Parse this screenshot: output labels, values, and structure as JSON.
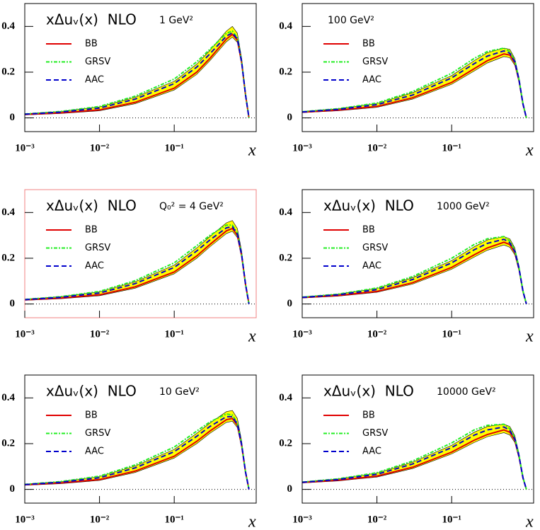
{
  "chart_data": [
    {
      "type": "line",
      "title": "xΔuᵥ(x)  NLO",
      "scale_label": "1 GeV²",
      "x_label": "x",
      "frame_color": "#000000",
      "zero_line": true,
      "xscale": "log",
      "xlim": [
        0.001,
        1.25
      ],
      "ylim": [
        -0.06,
        0.5
      ],
      "xticks": [
        {
          "value": 0.001,
          "label": "10⁻³"
        },
        {
          "value": 0.01,
          "label": "10⁻²"
        },
        {
          "value": 0.1,
          "label": "10⁻¹"
        }
      ],
      "yticks": [
        0,
        0.2,
        0.4
      ],
      "x": [
        0.001,
        0.003,
        0.01,
        0.03,
        0.1,
        0.2,
        0.3,
        0.5,
        0.6,
        0.7,
        0.8,
        0.9,
        1
      ],
      "band": {
        "color": "#ffff00",
        "upper": [
          0.018,
          0.028,
          0.048,
          0.09,
          0.16,
          0.235,
          0.295,
          0.38,
          0.4,
          0.37,
          0.26,
          0.11,
          0
        ],
        "lower": [
          0.013,
          0.019,
          0.031,
          0.062,
          0.122,
          0.19,
          0.25,
          0.333,
          0.353,
          0.33,
          0.232,
          0.095,
          0
        ]
      },
      "series": [
        {
          "name": "BB",
          "color": "#e00000",
          "style": "solid",
          "values": [
            0.015,
            0.022,
            0.035,
            0.068,
            0.13,
            0.2,
            0.26,
            0.345,
            0.365,
            0.34,
            0.24,
            0.1,
            0
          ]
        },
        {
          "name": "GRSV",
          "color": "#22ee22",
          "style": "dashdot",
          "values": [
            0.017,
            0.028,
            0.05,
            0.095,
            0.17,
            0.245,
            0.3,
            0.37,
            0.38,
            0.35,
            0.245,
            0.102,
            0
          ]
        },
        {
          "name": "AAC",
          "color": "#0000cc",
          "style": "dashed",
          "values": [
            0.016,
            0.025,
            0.043,
            0.082,
            0.15,
            0.222,
            0.28,
            0.358,
            0.372,
            0.345,
            0.242,
            0.101,
            0
          ]
        }
      ]
    },
    {
      "type": "line",
      "scale_label": "100 GeV²",
      "x_label": "x",
      "frame_color": "#000000",
      "zero_line": true,
      "xscale": "log",
      "xlim": [
        0.001,
        1.25
      ],
      "ylim": [
        -0.06,
        0.5
      ],
      "xticks": [
        {
          "value": 0.001,
          "label": "10⁻³"
        },
        {
          "value": 0.01,
          "label": "10⁻²"
        },
        {
          "value": 0.1,
          "label": "10⁻¹"
        }
      ],
      "yticks": [
        0,
        0.2,
        0.4
      ],
      "x": [
        0.001,
        0.003,
        0.01,
        0.03,
        0.1,
        0.2,
        0.3,
        0.5,
        0.6,
        0.7,
        0.8,
        0.9,
        1
      ],
      "band": {
        "color": "#ffff00",
        "upper": [
          0.028,
          0.04,
          0.063,
          0.11,
          0.185,
          0.25,
          0.285,
          0.305,
          0.3,
          0.26,
          0.175,
          0.065,
          0
        ],
        "lower": [
          0.023,
          0.031,
          0.046,
          0.082,
          0.147,
          0.205,
          0.24,
          0.268,
          0.263,
          0.23,
          0.152,
          0.055,
          0
        ]
      },
      "series": [
        {
          "name": "BB",
          "color": "#e00000",
          "style": "solid",
          "values": [
            0.025,
            0.034,
            0.05,
            0.088,
            0.155,
            0.215,
            0.25,
            0.28,
            0.275,
            0.24,
            0.16,
            0.06,
            0
          ]
        },
        {
          "name": "GRSV",
          "color": "#22ee22",
          "style": "dashdot",
          "values": [
            0.027,
            0.04,
            0.065,
            0.115,
            0.195,
            0.26,
            0.29,
            0.305,
            0.29,
            0.25,
            0.165,
            0.062,
            0
          ]
        },
        {
          "name": "AAC",
          "color": "#0000cc",
          "style": "dashed",
          "values": [
            0.026,
            0.037,
            0.058,
            0.1,
            0.175,
            0.237,
            0.27,
            0.293,
            0.283,
            0.245,
            0.163,
            0.061,
            0
          ]
        }
      ]
    },
    {
      "type": "line",
      "title": "xΔuᵥ(x)  NLO",
      "scale_label": "Q₀² = 4 GeV²",
      "x_label": "x",
      "frame_color": "#f08080",
      "zero_line": true,
      "xscale": "log",
      "xlim": [
        0.001,
        1.25
      ],
      "ylim": [
        -0.06,
        0.5
      ],
      "xticks": [
        {
          "value": 0.001,
          "label": "10⁻³"
        },
        {
          "value": 0.01,
          "label": "10⁻²"
        },
        {
          "value": 0.1,
          "label": "10⁻¹"
        }
      ],
      "yticks": [
        0,
        0.2,
        0.4
      ],
      "x": [
        0.001,
        0.003,
        0.01,
        0.03,
        0.1,
        0.2,
        0.3,
        0.5,
        0.6,
        0.7,
        0.8,
        0.9,
        1
      ],
      "band": {
        "color": "#ffff00",
        "upper": [
          0.021,
          0.032,
          0.053,
          0.097,
          0.17,
          0.245,
          0.295,
          0.355,
          0.365,
          0.33,
          0.23,
          0.095,
          0
        ],
        "lower": [
          0.016,
          0.023,
          0.036,
          0.069,
          0.132,
          0.2,
          0.25,
          0.308,
          0.318,
          0.29,
          0.202,
          0.08,
          0
        ]
      },
      "series": [
        {
          "name": "BB",
          "color": "#e00000",
          "style": "solid",
          "values": [
            0.018,
            0.026,
            0.04,
            0.075,
            0.14,
            0.21,
            0.26,
            0.32,
            0.33,
            0.3,
            0.21,
            0.085,
            0
          ]
        },
        {
          "name": "GRSV",
          "color": "#22ee22",
          "style": "dashdot",
          "values": [
            0.02,
            0.032,
            0.055,
            0.102,
            0.18,
            0.255,
            0.3,
            0.345,
            0.345,
            0.31,
            0.215,
            0.087,
            0
          ]
        },
        {
          "name": "AAC",
          "color": "#0000cc",
          "style": "dashed",
          "values": [
            0.019,
            0.029,
            0.048,
            0.089,
            0.16,
            0.232,
            0.28,
            0.333,
            0.338,
            0.305,
            0.213,
            0.086,
            0
          ]
        }
      ]
    },
    {
      "type": "line",
      "title": "xΔuᵥ(x)  NLO",
      "scale_label": "1000 GeV²",
      "x_label": "x",
      "frame_color": "#000000",
      "zero_line": true,
      "xscale": "log",
      "xlim": [
        0.001,
        1.25
      ],
      "ylim": [
        -0.06,
        0.5
      ],
      "xticks": [
        {
          "value": 0.001,
          "label": "10⁻³"
        },
        {
          "value": 0.01,
          "label": "10⁻²"
        },
        {
          "value": 0.1,
          "label": "10⁻¹"
        }
      ],
      "yticks": [
        0,
        0.2,
        0.4
      ],
      "x": [
        0.001,
        0.003,
        0.01,
        0.03,
        0.1,
        0.2,
        0.3,
        0.5,
        0.6,
        0.7,
        0.8,
        0.9,
        1
      ],
      "band": {
        "color": "#ffff00",
        "upper": [
          0.031,
          0.043,
          0.068,
          0.115,
          0.19,
          0.25,
          0.28,
          0.295,
          0.285,
          0.245,
          0.165,
          0.06,
          0
        ],
        "lower": [
          0.026,
          0.034,
          0.051,
          0.087,
          0.152,
          0.205,
          0.235,
          0.258,
          0.248,
          0.215,
          0.142,
          0.05,
          0
        ]
      },
      "series": [
        {
          "name": "BB",
          "color": "#e00000",
          "style": "solid",
          "values": [
            0.028,
            0.037,
            0.055,
            0.093,
            0.16,
            0.215,
            0.245,
            0.27,
            0.26,
            0.225,
            0.15,
            0.055,
            0
          ]
        },
        {
          "name": "GRSV",
          "color": "#22ee22",
          "style": "dashdot",
          "values": [
            0.03,
            0.043,
            0.07,
            0.12,
            0.2,
            0.26,
            0.285,
            0.295,
            0.275,
            0.235,
            0.155,
            0.057,
            0
          ]
        },
        {
          "name": "AAC",
          "color": "#0000cc",
          "style": "dashed",
          "values": [
            0.029,
            0.04,
            0.063,
            0.107,
            0.18,
            0.237,
            0.265,
            0.283,
            0.268,
            0.23,
            0.153,
            0.056,
            0
          ]
        }
      ]
    },
    {
      "type": "line",
      "title": "xΔuᵥ(x)  NLO",
      "scale_label": "10 GeV²",
      "x_label": "x",
      "frame_color": "#000000",
      "zero_line": true,
      "xscale": "log",
      "xlim": [
        0.001,
        1.25
      ],
      "ylim": [
        -0.06,
        0.5
      ],
      "xticks": [
        {
          "value": 0.001,
          "label": "10⁻³"
        },
        {
          "value": 0.01,
          "label": "10⁻²"
        },
        {
          "value": 0.1,
          "label": "10⁻¹"
        }
      ],
      "yticks": [
        0,
        0.2,
        0.4
      ],
      "x": [
        0.001,
        0.003,
        0.01,
        0.03,
        0.1,
        0.2,
        0.3,
        0.5,
        0.6,
        0.7,
        0.8,
        0.9,
        1
      ],
      "band": {
        "color": "#ffff00",
        "upper": [
          0.023,
          0.034,
          0.056,
          0.102,
          0.175,
          0.245,
          0.29,
          0.34,
          0.345,
          0.31,
          0.21,
          0.085,
          0
        ],
        "lower": [
          0.018,
          0.025,
          0.039,
          0.074,
          0.137,
          0.2,
          0.245,
          0.293,
          0.298,
          0.27,
          0.182,
          0.07,
          0
        ]
      },
      "series": [
        {
          "name": "BB",
          "color": "#e00000",
          "style": "solid",
          "values": [
            0.02,
            0.028,
            0.043,
            0.08,
            0.145,
            0.21,
            0.255,
            0.305,
            0.31,
            0.28,
            0.19,
            0.075,
            0
          ]
        },
        {
          "name": "GRSV",
          "color": "#22ee22",
          "style": "dashdot",
          "values": [
            0.022,
            0.034,
            0.058,
            0.107,
            0.185,
            0.255,
            0.295,
            0.33,
            0.325,
            0.29,
            0.195,
            0.077,
            0
          ]
        },
        {
          "name": "AAC",
          "color": "#0000cc",
          "style": "dashed",
          "values": [
            0.021,
            0.031,
            0.051,
            0.094,
            0.165,
            0.232,
            0.275,
            0.318,
            0.318,
            0.285,
            0.193,
            0.076,
            0
          ]
        }
      ]
    },
    {
      "type": "line",
      "title": "xΔuᵥ(x)  NLO",
      "scale_label": "10000 GeV²",
      "x_label": "x",
      "frame_color": "#000000",
      "zero_line": true,
      "xscale": "log",
      "xlim": [
        0.001,
        1.25
      ],
      "ylim": [
        -0.06,
        0.5
      ],
      "xticks": [
        {
          "value": 0.001,
          "label": "10⁻³"
        },
        {
          "value": 0.01,
          "label": "10⁻²"
        },
        {
          "value": 0.1,
          "label": "10⁻¹"
        }
      ],
      "yticks": [
        0,
        0.2,
        0.4
      ],
      "x": [
        0.001,
        0.003,
        0.01,
        0.03,
        0.1,
        0.2,
        0.3,
        0.5,
        0.6,
        0.7,
        0.8,
        0.9,
        1
      ],
      "band": {
        "color": "#ffff00",
        "upper": [
          0.033,
          0.046,
          0.071,
          0.119,
          0.193,
          0.25,
          0.275,
          0.285,
          0.275,
          0.235,
          0.155,
          0.055,
          0
        ],
        "lower": [
          0.028,
          0.037,
          0.054,
          0.091,
          0.155,
          0.205,
          0.23,
          0.248,
          0.238,
          0.205,
          0.132,
          0.045,
          0
        ]
      },
      "series": [
        {
          "name": "BB",
          "color": "#e00000",
          "style": "solid",
          "values": [
            0.03,
            0.04,
            0.058,
            0.097,
            0.163,
            0.215,
            0.24,
            0.26,
            0.25,
            0.215,
            0.14,
            0.05,
            0
          ]
        },
        {
          "name": "GRSV",
          "color": "#22ee22",
          "style": "dashdot",
          "values": [
            0.032,
            0.046,
            0.073,
            0.124,
            0.203,
            0.26,
            0.28,
            0.285,
            0.265,
            0.225,
            0.145,
            0.052,
            0
          ]
        },
        {
          "name": "AAC",
          "color": "#0000cc",
          "style": "dashed",
          "values": [
            0.031,
            0.043,
            0.066,
            0.111,
            0.183,
            0.237,
            0.26,
            0.273,
            0.258,
            0.22,
            0.143,
            0.051,
            0
          ]
        }
      ]
    }
  ]
}
